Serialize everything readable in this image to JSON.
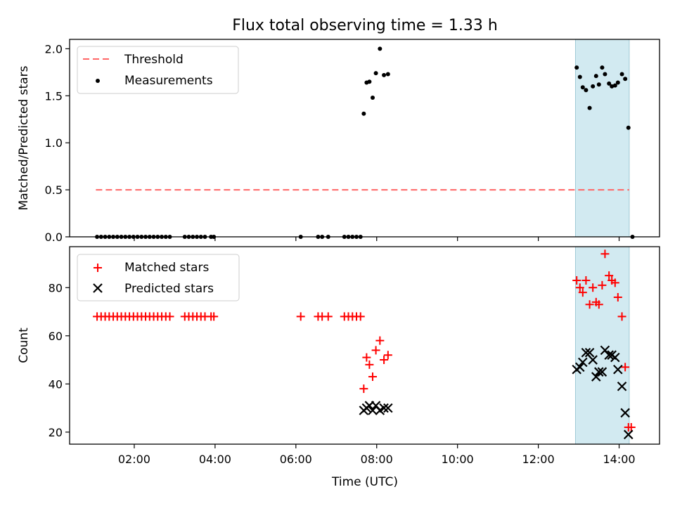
{
  "chart_data": {
    "title": "Flux total observing time = 1.33 h",
    "xlabel": "Time (UTC)",
    "xlim": [
      0.4,
      15.0
    ],
    "x_ticks": [
      2,
      4,
      6,
      8,
      10,
      12,
      14
    ],
    "x_tick_labels": [
      "02:00",
      "04:00",
      "06:00",
      "08:00",
      "10:00",
      "12:00",
      "14:00"
    ],
    "highlight": {
      "x_start": 12.92,
      "x_end": 14.25,
      "color": "#add8e6"
    },
    "panels": [
      {
        "id": "ratio",
        "type": "scatter",
        "ylabel": "Matched/Predicted stars",
        "ylim": [
          0,
          2.1
        ],
        "y_ticks": [
          0.0,
          0.5,
          1.0,
          1.5,
          2.0
        ],
        "y_tick_labels": [
          "0.0",
          "0.5",
          "1.0",
          "1.5",
          "2.0"
        ],
        "legend_position": "upper-left",
        "lines": [
          {
            "name": "Threshold",
            "color": "#ff6666",
            "style": "dashed",
            "x": [
              1.05,
              14.25
            ],
            "y": [
              0.5,
              0.5
            ]
          }
        ],
        "series": [
          {
            "name": "Measurements",
            "color": "#000000",
            "marker": "dot",
            "x": [
              1.08,
              1.18,
              1.28,
              1.38,
              1.48,
              1.58,
              1.68,
              1.78,
              1.88,
              1.98,
              2.08,
              2.18,
              2.28,
              2.38,
              2.48,
              2.58,
              2.68,
              2.78,
              2.88,
              3.25,
              3.35,
              3.45,
              3.55,
              3.65,
              3.75,
              3.9,
              3.97,
              6.12,
              6.55,
              6.65,
              6.8,
              7.2,
              7.3,
              7.4,
              7.5,
              7.6,
              7.68,
              7.75,
              7.82,
              7.9,
              7.98,
              8.08,
              8.18,
              8.28,
              12.95,
              13.03,
              13.1,
              13.18,
              13.27,
              13.35,
              13.43,
              13.5,
              13.58,
              13.65,
              13.75,
              13.82,
              13.9,
              13.97,
              14.07,
              14.15,
              14.23,
              14.33
            ],
            "y": [
              0,
              0,
              0,
              0,
              0,
              0,
              0,
              0,
              0,
              0,
              0,
              0,
              0,
              0,
              0,
              0,
              0,
              0,
              0,
              0,
              0,
              0,
              0,
              0,
              0,
              0,
              0,
              0,
              0,
              0,
              0,
              0,
              0,
              0,
              0,
              0,
              1.31,
              1.64,
              1.65,
              1.48,
              1.74,
              2.0,
              1.72,
              1.73,
              1.8,
              1.7,
              1.59,
              1.56,
              1.37,
              1.6,
              1.71,
              1.62,
              1.8,
              1.73,
              1.63,
              1.6,
              1.61,
              1.64,
              1.73,
              1.68,
              1.16,
              0
            ]
          }
        ]
      },
      {
        "id": "counts",
        "type": "scatter",
        "ylabel": "Count",
        "ylim": [
          15,
          97
        ],
        "y_ticks": [
          20,
          40,
          60,
          80
        ],
        "y_tick_labels": [
          "20",
          "40",
          "60",
          "80"
        ],
        "legend_position": "upper-left",
        "series": [
          {
            "name": "Matched stars",
            "color": "#ff0000",
            "marker": "plus",
            "x": [
              1.08,
              1.18,
              1.28,
              1.38,
              1.48,
              1.58,
              1.68,
              1.78,
              1.88,
              1.98,
              2.08,
              2.18,
              2.28,
              2.38,
              2.48,
              2.58,
              2.68,
              2.78,
              2.88,
              3.25,
              3.35,
              3.45,
              3.55,
              3.65,
              3.75,
              3.9,
              3.97,
              6.12,
              6.55,
              6.65,
              6.8,
              7.2,
              7.3,
              7.4,
              7.5,
              7.6,
              7.68,
              7.75,
              7.82,
              7.9,
              7.98,
              8.08,
              8.18,
              8.28,
              12.95,
              13.03,
              13.1,
              13.18,
              13.27,
              13.35,
              13.43,
              13.5,
              13.58,
              13.65,
              13.75,
              13.82,
              13.9,
              13.97,
              14.07,
              14.15,
              14.23,
              14.3
            ],
            "y": [
              68,
              68,
              68,
              68,
              68,
              68,
              68,
              68,
              68,
              68,
              68,
              68,
              68,
              68,
              68,
              68,
              68,
              68,
              68,
              68,
              68,
              68,
              68,
              68,
              68,
              68,
              68,
              68,
              68,
              68,
              68,
              68,
              68,
              68,
              68,
              68,
              38,
              51,
              48,
              43,
              54,
              58,
              50,
              52,
              83,
              80,
              78,
              83,
              73,
              80,
              74,
              73,
              81,
              94,
              85,
              83,
              82,
              76,
              68,
              47,
              22,
              22
            ]
          },
          {
            "name": "Predicted stars",
            "color": "#000000",
            "marker": "x",
            "x": [
              7.68,
              7.75,
              7.82,
              7.9,
              7.98,
              8.08,
              8.18,
              8.28,
              12.95,
              13.03,
              13.1,
              13.18,
              13.27,
              13.35,
              13.43,
              13.5,
              13.58,
              13.65,
              13.75,
              13.82,
              13.9,
              13.97,
              14.07,
              14.15,
              14.23
            ],
            "y": [
              29,
              30,
              31,
              29,
              31,
              29,
              30,
              30,
              46,
              47,
              49,
              53,
              53,
              50,
              43,
              45,
              45,
              54,
              52,
              52,
              51,
              46,
              39,
              28,
              19
            ]
          }
        ]
      }
    ]
  }
}
